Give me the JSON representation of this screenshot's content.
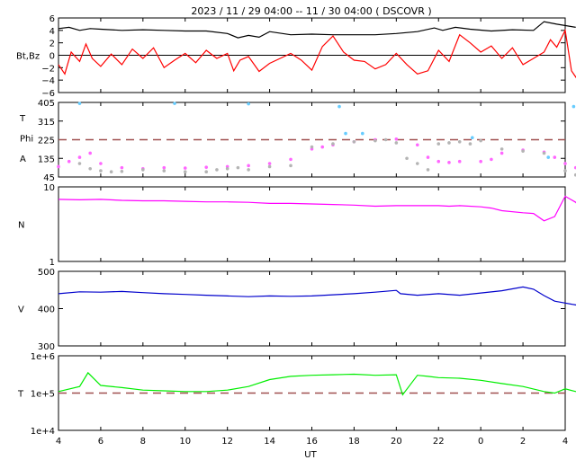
{
  "title": "2023 / 11 / 29   04:00 -- 11 / 30   04:00 ( DSCOVR )",
  "xlabel": "UT",
  "x_ticks": [
    "4",
    "6",
    "8",
    "10",
    "12",
    "14",
    "16",
    "18",
    "20",
    "22",
    "0",
    "2",
    "4"
  ],
  "colors": {
    "bt": "#000000",
    "bz": "#ff0000",
    "theta": "#ff66ff",
    "phi_gray": "#b4b4b4",
    "phi_cyan": "#66ccff",
    "density": "#ff00ff",
    "speed": "#0000cc",
    "temperature": "#00ee00",
    "reference_line": "#a05050"
  },
  "chart_data": [
    {
      "type": "line",
      "panel": "magnetic_field",
      "ylabel": "Bt,Bz",
      "y_ticks": [
        "6",
        "4",
        "2",
        "0",
        "−2",
        "−4",
        "−6"
      ],
      "ylim": [
        -6,
        6
      ],
      "x_unit": "hours after 04:00 UT",
      "zero_line": true,
      "series": [
        {
          "key": "Bt",
          "color": "#000000",
          "x": [
            0,
            0.5,
            1,
            1.5,
            2,
            3,
            4,
            5,
            6,
            7,
            8,
            8.5,
            9,
            9.5,
            10,
            11,
            12,
            13,
            14,
            15,
            16,
            17,
            17.8,
            18.2,
            18.8,
            19.5,
            20.5,
            21.5,
            22.5,
            23,
            23.6,
            24.5
          ],
          "y": [
            4.3,
            4.5,
            4.0,
            4.3,
            4.2,
            4.0,
            4.1,
            4.0,
            3.9,
            3.9,
            3.5,
            2.8,
            3.2,
            2.9,
            3.8,
            3.3,
            3.4,
            3.3,
            3.3,
            3.3,
            3.5,
            3.8,
            4.4,
            4.0,
            4.5,
            4.2,
            3.9,
            4.1,
            4.0,
            5.4,
            5.0,
            4.5
          ]
        },
        {
          "key": "Bz",
          "color": "#ff0000",
          "x": [
            0,
            0.3,
            0.6,
            1,
            1.3,
            1.6,
            2,
            2.5,
            3,
            3.5,
            4,
            4.5,
            5,
            5.5,
            6,
            6.5,
            7,
            7.5,
            8,
            8.3,
            8.6,
            9,
            9.5,
            10,
            10.5,
            11,
            11.5,
            12,
            12.5,
            13,
            13.5,
            14,
            14.5,
            15,
            15.5,
            16,
            16.5,
            17,
            17.5,
            18,
            18.5,
            19,
            19.5,
            20,
            20.5,
            21,
            21.5,
            22,
            22.5,
            23,
            23.3,
            23.6,
            24,
            24.3,
            24.6,
            24.9
          ],
          "y": [
            -1.5,
            -3.0,
            0.5,
            -1.0,
            1.8,
            -0.5,
            -1.8,
            0.2,
            -1.5,
            1.0,
            -0.5,
            1.2,
            -2.0,
            -0.8,
            0.3,
            -1.2,
            0.8,
            -0.5,
            0.3,
            -2.5,
            -0.8,
            -0.2,
            -2.6,
            -1.3,
            -0.5,
            0.3,
            -0.8,
            -2.4,
            1.4,
            3.1,
            0.5,
            -0.8,
            -1.0,
            -2.2,
            -1.5,
            0.3,
            -1.5,
            -3.0,
            -2.5,
            0.8,
            -1.0,
            3.3,
            2.0,
            0.5,
            1.5,
            -0.5,
            1.2,
            -1.5,
            -0.5,
            0.5,
            2.5,
            1.3,
            4.0,
            -2.5,
            -4.0,
            -3.0
          ]
        }
      ]
    },
    {
      "type": "scatter",
      "panel": "angles",
      "ylabels": [
        "T",
        "Phi",
        "A"
      ],
      "y_ticks": [
        "405",
        "315",
        "225",
        "135",
        "45"
      ],
      "ylim": [
        45,
        405
      ],
      "reference_line": 225,
      "x_unit": "hours after 04:00 UT",
      "series": [
        {
          "key": "magenta",
          "color": "#ff66ff",
          "x": [
            0,
            0.5,
            1,
            1.5,
            2,
            3,
            4,
            5,
            6,
            7,
            8,
            9,
            10,
            11,
            12,
            12.5,
            13,
            14,
            15,
            16,
            17,
            17.5,
            18,
            18.5,
            19,
            20,
            20.5,
            21,
            22,
            23,
            23.5,
            24,
            24.5,
            24.9
          ],
          "y": [
            95,
            120,
            140,
            160,
            110,
            90,
            85,
            90,
            88,
            92,
            95,
            100,
            110,
            130,
            180,
            190,
            200,
            215,
            225,
            228,
            200,
            140,
            120,
            115,
            120,
            120,
            130,
            160,
            175,
            165,
            140,
            110,
            90,
            120
          ]
        },
        {
          "key": "gray",
          "color": "#b4b4b4",
          "x": [
            1,
            1.5,
            2,
            2.5,
            3,
            4,
            5,
            6,
            7,
            7.5,
            8,
            8.5,
            9,
            10,
            11,
            12,
            13,
            14,
            15,
            15.5,
            16,
            16.5,
            17,
            17.5,
            18,
            18.5,
            19,
            19.5,
            20,
            21,
            22,
            23,
            24,
            24.5
          ],
          "y": [
            110,
            85,
            75,
            70,
            72,
            80,
            75,
            70,
            70,
            80,
            85,
            90,
            80,
            95,
            100,
            190,
            205,
            215,
            220,
            225,
            210,
            135,
            110,
            80,
            205,
            210,
            215,
            205,
            220,
            180,
            170,
            160,
            75,
            55
          ]
        },
        {
          "key": "cyan",
          "color": "#66ccff",
          "x": [
            1,
            5.5,
            9,
            13.3,
            13.6,
            14.4,
            19.6,
            23.2,
            24.4
          ],
          "y": [
            400,
            400,
            398,
            385,
            255,
            255,
            235,
            140,
            385
          ]
        }
      ]
    },
    {
      "type": "line",
      "panel": "density",
      "ylabel": "N",
      "y_ticks": [
        "10",
        "1"
      ],
      "yscale": "log",
      "ylim": [
        1,
        10
      ],
      "x_unit": "hours after 04:00 UT",
      "series": [
        {
          "key": "N",
          "color": "#ff00ff",
          "x": [
            0,
            1,
            2,
            3,
            4,
            5,
            6,
            7,
            8,
            9,
            10,
            11,
            12,
            13,
            14,
            15,
            16,
            17,
            18,
            18.5,
            19,
            20,
            20.5,
            21,
            22,
            22.5,
            23,
            23.5,
            24,
            24.5,
            24.9
          ],
          "y": [
            6.8,
            6.7,
            6.8,
            6.6,
            6.5,
            6.5,
            6.4,
            6.3,
            6.3,
            6.2,
            6.0,
            6.0,
            5.9,
            5.8,
            5.7,
            5.5,
            5.6,
            5.6,
            5.6,
            5.5,
            5.6,
            5.4,
            5.2,
            4.8,
            4.5,
            4.4,
            3.5,
            4.0,
            7.5,
            6.2,
            4.5
          ]
        }
      ]
    },
    {
      "type": "line",
      "panel": "speed",
      "ylabel": "V",
      "y_ticks": [
        "500",
        "400",
        "300"
      ],
      "ylim": [
        300,
        500
      ],
      "x_unit": "hours after 04:00 UT",
      "series": [
        {
          "key": "V",
          "color": "#0000cc",
          "x": [
            0,
            1,
            2,
            3,
            4,
            5,
            6,
            7,
            8,
            9,
            10,
            11,
            12,
            13,
            14,
            15,
            16,
            16.2,
            17,
            18,
            19,
            20,
            21,
            22,
            22.5,
            23,
            23.5,
            24,
            24.5,
            24.9
          ],
          "y": [
            440,
            445,
            444,
            446,
            443,
            440,
            438,
            436,
            434,
            432,
            434,
            433,
            434,
            437,
            440,
            444,
            449,
            440,
            436,
            440,
            436,
            442,
            448,
            458,
            452,
            435,
            420,
            415,
            410,
            405
          ]
        }
      ]
    },
    {
      "type": "line",
      "panel": "temperature",
      "ylabel": "T",
      "y_ticks": [
        "1e+6",
        "1e+5",
        "1e+4"
      ],
      "yscale": "log",
      "ylim": [
        10000,
        1000000
      ],
      "reference_line": 100000,
      "x_unit": "hours after 04:00 UT",
      "series": [
        {
          "key": "T",
          "color": "#00ee00",
          "x": [
            0,
            1,
            1.4,
            2,
            3,
            4,
            5,
            6,
            7,
            8,
            9,
            10,
            11,
            12,
            13,
            14,
            15,
            16,
            16.3,
            17,
            17.5,
            18,
            19,
            20,
            21,
            22,
            23,
            23.5,
            24,
            24.5,
            24.9
          ],
          "y": [
            110000,
            150000,
            350000,
            160000,
            140000,
            120000,
            115000,
            110000,
            110000,
            120000,
            150000,
            230000,
            280000,
            300000,
            310000,
            320000,
            300000,
            310000,
            90000,
            300000,
            280000,
            260000,
            250000,
            220000,
            180000,
            150000,
            110000,
            100000,
            130000,
            110000,
            120000
          ]
        }
      ]
    }
  ]
}
